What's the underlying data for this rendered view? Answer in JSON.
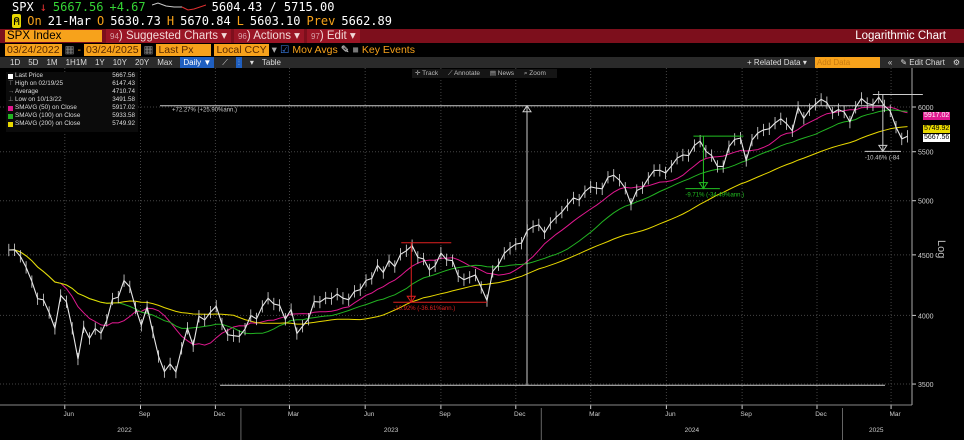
{
  "header": {
    "ticker": "SPX",
    "direction": "↓",
    "last": "5667.56",
    "change": "+4.67",
    "range": "5604.43 / 5715.00",
    "on_label": "On",
    "date": "21-Mar",
    "o_label": "O",
    "open": "5630.73",
    "h_label": "H",
    "high": "5670.84",
    "l_label": "L",
    "low": "5603.10",
    "prev_label": "Prev",
    "prev": "5662.89"
  },
  "menu": {
    "security": "SPX Index",
    "suggested": "Suggested Charts",
    "suggested_num": "94",
    "actions": "Actions",
    "actions_num": "96",
    "edit": "Edit",
    "edit_num": "97",
    "chart_type": "Logarithmic Chart"
  },
  "controls": {
    "start_date": "03/24/2022",
    "end_date": "03/24/2025",
    "field": "Last Px",
    "currency": "Local CCY",
    "mov_avgs": "Mov Avgs",
    "key_events": "Key Events",
    "mov_avgs_checked": true,
    "key_events_checked": false
  },
  "toolbar": {
    "periods": [
      "1D",
      "5D",
      "1M",
      "1H1M",
      "1Y",
      "10Y",
      "20Y",
      "Max"
    ],
    "frequency": "Daily ▼",
    "table": "Table",
    "related": "+ Related Data ▾",
    "add_data_placeholder": "Add Data",
    "collapse": "«",
    "edit_chart": "Edit Chart",
    "settings_icon": "gear-icon"
  },
  "chart_tools": {
    "track": "Track",
    "annotate": "Annotate",
    "news": "News",
    "zoom": "Zoom"
  },
  "legend": [
    {
      "label": "Last Price",
      "value": "5667.56",
      "color": "#ffffff"
    },
    {
      "label": "High on 02/19/25",
      "value": "6147.43"
    },
    {
      "label": "Average",
      "value": "4710.74"
    },
    {
      "label": "Low on 10/13/22",
      "value": "3491.58"
    },
    {
      "label": "SMAVG (50)  on Close",
      "value": "5917.02",
      "color": "#e0188f"
    },
    {
      "label": "SMAVG (100)  on Close",
      "value": "5933.58",
      "color": "#22b322"
    },
    {
      "label": "SMAVG (200)  on Close",
      "value": "5749.92",
      "color": "#e8d800"
    }
  ],
  "chart_data": {
    "type": "line",
    "scale": "log",
    "ylim": [
      3400,
      6300
    ],
    "ylabel": "Log",
    "grid": true,
    "yticks": [
      "3500",
      "4000",
      "4500",
      "5000",
      "5500",
      "6000"
    ],
    "xticks": [
      [
        "Jun",
        "2022-06-01"
      ],
      [
        "Sep",
        "2022-09-01"
      ],
      [
        "Dec",
        "2022-12-01"
      ],
      [
        "Mar",
        "2023-03-01"
      ],
      [
        "Jun",
        "2023-06-01"
      ],
      [
        "Sep",
        "2023-09-01"
      ],
      [
        "Dec",
        "2023-12-01"
      ],
      [
        "Mar",
        "2024-03-01"
      ],
      [
        "Jun",
        "2024-06-01"
      ],
      [
        "Sep",
        "2024-09-01"
      ],
      [
        "Dec",
        "2024-12-01"
      ],
      [
        "Mar",
        "2025-03-01"
      ]
    ],
    "years": [
      [
        "2022",
        "2022-03-24",
        "2023-01-01"
      ],
      [
        "2023",
        "2023-01-01",
        "2024-01-01"
      ],
      [
        "2024",
        "2024-01-01",
        "2025-01-01"
      ],
      [
        "2025",
        "2025-01-01",
        "2025-03-24"
      ]
    ],
    "xlim": [
      "2022-03-24",
      "2025-03-24"
    ],
    "series_name": "Last Price",
    "x": [
      "2022-03-25",
      "2022-04-01",
      "2022-04-08",
      "2022-04-15",
      "2022-04-22",
      "2022-04-29",
      "2022-05-06",
      "2022-05-13",
      "2022-05-20",
      "2022-05-27",
      "2022-06-03",
      "2022-06-10",
      "2022-06-17",
      "2022-06-24",
      "2022-07-01",
      "2022-07-08",
      "2022-07-15",
      "2022-07-22",
      "2022-07-29",
      "2022-08-05",
      "2022-08-12",
      "2022-08-19",
      "2022-08-26",
      "2022-09-02",
      "2022-09-09",
      "2022-09-16",
      "2022-09-23",
      "2022-09-30",
      "2022-10-07",
      "2022-10-14",
      "2022-10-21",
      "2022-10-28",
      "2022-11-04",
      "2022-11-11",
      "2022-11-18",
      "2022-11-25",
      "2022-12-02",
      "2022-12-09",
      "2022-12-16",
      "2022-12-23",
      "2022-12-30",
      "2023-01-06",
      "2023-01-13",
      "2023-01-20",
      "2023-01-27",
      "2023-02-03",
      "2023-02-10",
      "2023-02-17",
      "2023-02-24",
      "2023-03-03",
      "2023-03-10",
      "2023-03-17",
      "2023-03-24",
      "2023-03-31",
      "2023-04-07",
      "2023-04-14",
      "2023-04-21",
      "2023-04-28",
      "2023-05-05",
      "2023-05-12",
      "2023-05-19",
      "2023-05-26",
      "2023-06-02",
      "2023-06-09",
      "2023-06-16",
      "2023-06-23",
      "2023-06-30",
      "2023-07-07",
      "2023-07-14",
      "2023-07-21",
      "2023-07-28",
      "2023-08-04",
      "2023-08-11",
      "2023-08-18",
      "2023-08-25",
      "2023-09-01",
      "2023-09-08",
      "2023-09-15",
      "2023-09-22",
      "2023-09-29",
      "2023-10-06",
      "2023-10-13",
      "2023-10-20",
      "2023-10-27",
      "2023-11-03",
      "2023-11-10",
      "2023-11-17",
      "2023-11-24",
      "2023-12-01",
      "2023-12-08",
      "2023-12-15",
      "2023-12-22",
      "2023-12-29",
      "2024-01-05",
      "2024-01-12",
      "2024-01-19",
      "2024-01-26",
      "2024-02-02",
      "2024-02-09",
      "2024-02-16",
      "2024-02-23",
      "2024-03-01",
      "2024-03-08",
      "2024-03-15",
      "2024-03-22",
      "2024-03-29",
      "2024-04-05",
      "2024-04-12",
      "2024-04-19",
      "2024-04-26",
      "2024-05-03",
      "2024-05-10",
      "2024-05-17",
      "2024-05-24",
      "2024-05-31",
      "2024-06-07",
      "2024-06-14",
      "2024-06-21",
      "2024-06-28",
      "2024-07-05",
      "2024-07-12",
      "2024-07-19",
      "2024-07-26",
      "2024-08-02",
      "2024-08-09",
      "2024-08-16",
      "2024-08-23",
      "2024-08-30",
      "2024-09-06",
      "2024-09-13",
      "2024-09-20",
      "2024-09-27",
      "2024-10-04",
      "2024-10-11",
      "2024-10-18",
      "2024-10-25",
      "2024-11-01",
      "2024-11-08",
      "2024-11-15",
      "2024-11-22",
      "2024-11-29",
      "2024-12-06",
      "2024-12-13",
      "2024-12-20",
      "2024-12-27",
      "2025-01-03",
      "2025-01-10",
      "2025-01-17",
      "2025-01-24",
      "2025-01-31",
      "2025-02-07",
      "2025-02-14",
      "2025-02-21",
      "2025-02-28",
      "2025-03-07",
      "2025-03-14",
      "2025-03-21"
    ],
    "values": [
      4543,
      4545,
      4488,
      4392,
      4272,
      4132,
      4123,
      4023,
      3901,
      4158,
      4108,
      3901,
      3675,
      3912,
      3825,
      3899,
      3863,
      3962,
      4130,
      4145,
      4280,
      4228,
      4058,
      3924,
      4067,
      3873,
      3693,
      3586,
      3640,
      3583,
      3752,
      3901,
      3771,
      3993,
      3965,
      4026,
      4072,
      3934,
      3852,
      3845,
      3840,
      3895,
      3999,
      3973,
      4071,
      4136,
      4090,
      4079,
      3970,
      4046,
      3862,
      3917,
      3971,
      4109,
      4105,
      4138,
      4133,
      4169,
      4136,
      4124,
      4192,
      4205,
      4282,
      4299,
      4410,
      4348,
      4450,
      4399,
      4505,
      4536,
      4582,
      4478,
      4464,
      4370,
      4406,
      4516,
      4457,
      4450,
      4320,
      4288,
      4308,
      4327,
      4224,
      4117,
      4358,
      4415,
      4514,
      4559,
      4595,
      4604,
      4719,
      4755,
      4770,
      4697,
      4784,
      4840,
      4891,
      4959,
      5027,
      5006,
      5089,
      5137,
      5124,
      5117,
      5234,
      5254,
      5204,
      5123,
      4967,
      5100,
      5128,
      5223,
      5303,
      5305,
      5278,
      5347,
      5431,
      5465,
      5460,
      5567,
      5615,
      5505,
      5459,
      5346,
      5344,
      5554,
      5634,
      5648,
      5408,
      5626,
      5703,
      5738,
      5751,
      5815,
      5864,
      5808,
      5729,
      5995,
      5870,
      5969,
      6032,
      6090,
      6051,
      5931,
      5970,
      5942,
      5827,
      5997,
      6101,
      6041,
      6026,
      6115,
      6013,
      5955,
      5770,
      5639,
      5668
    ],
    "moving_averages": [
      {
        "name": "SMAVG (50)",
        "window_days": 50,
        "color": "#e0188f",
        "last": "5917.02"
      },
      {
        "name": "SMAVG (100)",
        "window_days": 100,
        "color": "#22b322",
        "last": "5933.58"
      },
      {
        "name": "SMAVG (200)",
        "window_days": 200,
        "color": "#e8d800",
        "last": "5749.92"
      }
    ],
    "annotations": [
      {
        "text": "+72.27% (+25.90%ann.)",
        "from": [
          "2022-10-13",
          3491.58
        ],
        "to": [
          "2024-12-10",
          6015
        ],
        "color": "#cccccc"
      },
      {
        "text": "-10.92% (-36.61%ann.)",
        "from": [
          "2023-07-27",
          4607
        ],
        "to": [
          "2023-10-27",
          4104
        ],
        "color": "#e02020"
      },
      {
        "text": "-9.71% (-34.49%ann.)",
        "from": [
          "2024-07-16",
          5669
        ],
        "to": [
          "2024-08-05",
          5119
        ],
        "color": "#22c022"
      },
      {
        "text": "-10.46% (-84",
        "from": [
          "2025-02-19",
          6147
        ],
        "to": [
          "2025-03-13",
          5504
        ],
        "color": "#cccccc"
      }
    ],
    "badges": [
      {
        "value": "5917.02",
        "color": "#e0188f",
        "text_color": "#ffffff"
      },
      {
        "value": "5749.92",
        "color": "#e8d800",
        "text_color": "#000000"
      },
      {
        "value": "5667.56",
        "color": "#ffffff",
        "text_color": "#000000"
      }
    ]
  }
}
